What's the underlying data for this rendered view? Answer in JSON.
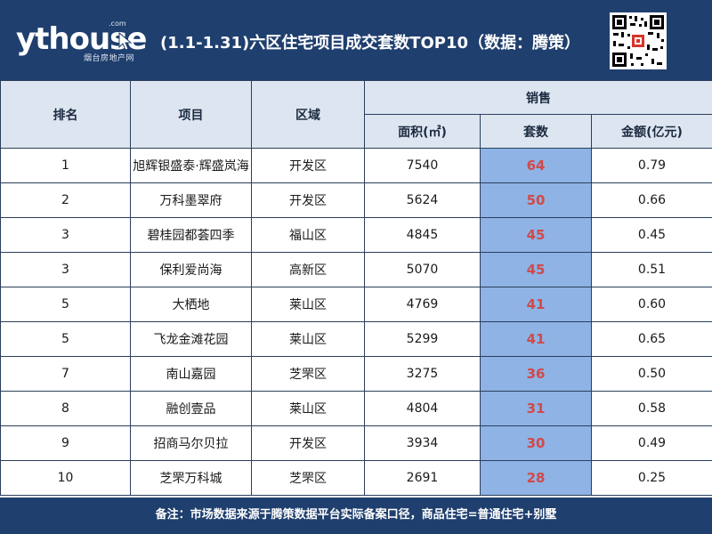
{
  "header": {
    "logo_text": "ythouse",
    "logo_domain": ".com",
    "logo_subtitle": "烟台房地产网",
    "title": "(1.1-1.31)六区住宅项目成交套数TOP10（数据：腾策）"
  },
  "table": {
    "headers": {
      "rank": "排名",
      "project": "项目",
      "district": "区域",
      "sales_group": "销售",
      "area": "面积(㎡)",
      "units": "套数",
      "amount": "金额(亿元)"
    },
    "rows": [
      {
        "rank": "1",
        "project": "旭辉银盛泰·辉盛岚海",
        "district": "开发区",
        "area": "7540",
        "units": "64",
        "amount": "0.79"
      },
      {
        "rank": "2",
        "project": "万科墨翠府",
        "district": "开发区",
        "area": "5624",
        "units": "50",
        "amount": "0.66"
      },
      {
        "rank": "3",
        "project": "碧桂园都荟四季",
        "district": "福山区",
        "area": "4845",
        "units": "45",
        "amount": "0.45"
      },
      {
        "rank": "3",
        "project": "保利爱尚海",
        "district": "高新区",
        "area": "5070",
        "units": "45",
        "amount": "0.51"
      },
      {
        "rank": "5",
        "project": "大栖地",
        "district": "莱山区",
        "area": "4769",
        "units": "41",
        "amount": "0.60"
      },
      {
        "rank": "5",
        "project": "飞龙金滩花园",
        "district": "莱山区",
        "area": "5299",
        "units": "41",
        "amount": "0.65"
      },
      {
        "rank": "7",
        "project": "南山嘉园",
        "district": "芝罘区",
        "area": "3275",
        "units": "36",
        "amount": "0.50"
      },
      {
        "rank": "8",
        "project": "融创壹品",
        "district": "莱山区",
        "area": "4804",
        "units": "31",
        "amount": "0.58"
      },
      {
        "rank": "9",
        "project": "招商马尔贝拉",
        "district": "开发区",
        "area": "3934",
        "units": "30",
        "amount": "0.49"
      },
      {
        "rank": "10",
        "project": "芝罘万科城",
        "district": "芝罘区",
        "area": "2691",
        "units": "28",
        "amount": "0.25"
      }
    ]
  },
  "footer": {
    "note": "备注：市场数据来源于腾策数据平台实际备案口径，商品住宅=普通住宅+别墅"
  },
  "colors": {
    "header_bg": "#1f3f6e",
    "table_header_bg": "#dde5f0",
    "units_highlight_bg": "#8eb3e4",
    "units_text": "#d04a4a"
  },
  "icons": [
    "cursor-icon",
    "qr-code"
  ]
}
